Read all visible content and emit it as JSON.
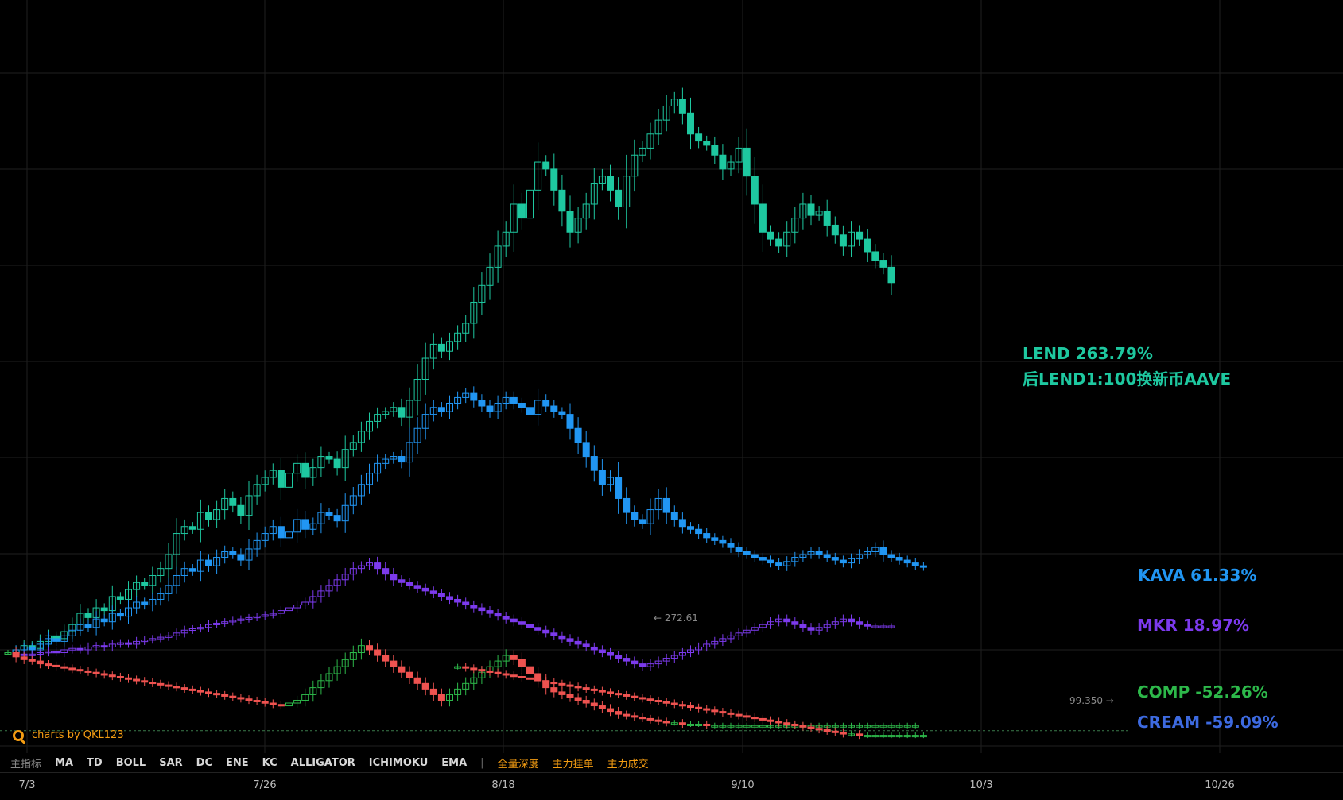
{
  "chart_data": {
    "type": "candlestick",
    "x_ticks": [
      "7/3",
      "7/26",
      "8/18",
      "9/10",
      "10/3",
      "10/26"
    ],
    "series": [
      {
        "name": "LEND",
        "label": "LEND  263.79%",
        "note": "后LEND1:100换新币AAVE",
        "color": "#1ec8a0",
        "change_pct": 263.79,
        "values": [
          0,
          2,
          5,
          3,
          8,
          12,
          10,
          15,
          20,
          28,
          25,
          32,
          30,
          40,
          38,
          45,
          50,
          48,
          55,
          60,
          70,
          85,
          90,
          88,
          100,
          95,
          102,
          110,
          105,
          98,
          112,
          120,
          125,
          130,
          118,
          128,
          135,
          125,
          132,
          140,
          138,
          132,
          145,
          150,
          158,
          165,
          170,
          172,
          175,
          168,
          180,
          195,
          210,
          220,
          215,
          222,
          228,
          235,
          250,
          262,
          275,
          290,
          300,
          320,
          310,
          330,
          350,
          345,
          330,
          315,
          300,
          310,
          320,
          335,
          340,
          330,
          318,
          340,
          355,
          360,
          370,
          380,
          390,
          395,
          385,
          370,
          365,
          362,
          355,
          345,
          350,
          360,
          340,
          320,
          300,
          295,
          290,
          300,
          310,
          320,
          312,
          315,
          305,
          298,
          290,
          300,
          295,
          286,
          280,
          275,
          264
        ]
      },
      {
        "name": "KAVA",
        "label": "KAVA  61.33%",
        "color": "#2196f3",
        "change_pct": 61.33,
        "values": [
          0,
          2,
          4,
          2,
          6,
          10,
          8,
          12,
          16,
          20,
          18,
          24,
          22,
          28,
          26,
          32,
          36,
          34,
          38,
          42,
          48,
          55,
          60,
          58,
          66,
          62,
          68,
          72,
          70,
          66,
          74,
          80,
          85,
          90,
          82,
          86,
          95,
          88,
          92,
          100,
          98,
          94,
          105,
          112,
          120,
          128,
          135,
          138,
          140,
          136,
          150,
          160,
          170,
          175,
          172,
          178,
          182,
          185,
          180,
          176,
          172,
          178,
          182,
          178,
          175,
          170,
          180,
          176,
          172,
          170,
          160,
          150,
          140,
          130,
          120,
          125,
          110,
          100,
          95,
          92,
          102,
          110,
          100,
          95,
          90,
          88,
          85,
          82,
          80,
          78,
          75,
          72,
          70,
          68,
          66,
          64,
          62,
          65,
          68,
          70,
          72,
          70,
          68,
          66,
          64,
          67,
          70,
          72,
          75,
          70,
          68,
          66,
          64,
          62,
          61
        ]
      },
      {
        "name": "MKR",
        "label": "MKR  18.97%",
        "color": "#7c3aed",
        "change_pct": 18.97,
        "values": [
          0,
          -1,
          -2,
          -1,
          0,
          1,
          0,
          2,
          3,
          2,
          4,
          5,
          4,
          6,
          7,
          6,
          8,
          9,
          10,
          11,
          12,
          14,
          16,
          17,
          18,
          20,
          21,
          22,
          23,
          24,
          25,
          26,
          27,
          28,
          30,
          32,
          34,
          36,
          40,
          44,
          48,
          52,
          56,
          60,
          62,
          64,
          60,
          56,
          52,
          50,
          48,
          46,
          44,
          42,
          40,
          38,
          36,
          34,
          32,
          30,
          28,
          26,
          24,
          22,
          20,
          18,
          16,
          14,
          12,
          10,
          8,
          6,
          4,
          2,
          0,
          -2,
          -4,
          -6,
          -8,
          -10,
          -8,
          -6,
          -4,
          -2,
          0,
          2,
          4,
          6,
          8,
          10,
          12,
          14,
          16,
          18,
          20,
          22,
          24,
          22,
          20,
          18,
          16,
          18,
          20,
          22,
          24,
          22,
          20,
          19,
          19,
          19,
          19
        ]
      },
      {
        "name": "COMP",
        "label": "COMP -52.26%",
        "color": "#2db84a",
        "change_pct": -52.26,
        "values": [
          0,
          -3,
          -5,
          -6,
          -8,
          -9,
          -10,
          -11,
          -12,
          -13,
          -14,
          -15,
          -16,
          -17,
          -18,
          -19,
          -20,
          -21,
          -22,
          -23,
          -24,
          -25,
          -26,
          -27,
          -28,
          -29,
          -30,
          -31,
          -32,
          -33,
          -34,
          -35,
          -36,
          -37,
          -38,
          -36,
          -34,
          -30,
          -25,
          -20,
          -15,
          -10,
          -5,
          0,
          5,
          2,
          -2,
          -6,
          -10,
          -14,
          -18,
          -22,
          -26,
          -30,
          -34,
          -30,
          -26,
          -22,
          -18,
          -14,
          -10,
          -6,
          -2,
          -5,
          -10,
          -15,
          -20,
          -25,
          -28,
          -30,
          -32,
          -34,
          -36,
          -38,
          -40,
          -42,
          -44,
          -45,
          -46,
          -47,
          -48,
          -49,
          -50,
          -50,
          -51,
          -51,
          -51,
          -52,
          -52,
          -52,
          -52,
          -52,
          -52,
          -52,
          -52,
          -52,
          -52,
          -52,
          -52,
          -52,
          -52,
          -52,
          -52,
          -52,
          -52,
          -52,
          -52,
          -52,
          -52,
          -52,
          -52,
          -52,
          -52,
          -52
        ]
      },
      {
        "name": "CREAM",
        "label": "CREAM -59.09%",
        "color": "#3d6ae0",
        "change_pct": -59.09,
        "values": [
          -10,
          -11,
          -12,
          -13,
          -14,
          -15,
          -16,
          -17,
          -18,
          -19,
          -20,
          -21,
          -22,
          -23,
          -24,
          -25,
          -26,
          -27,
          -28,
          -29,
          -30,
          -31,
          -32,
          -33,
          -34,
          -35,
          -36,
          -37,
          -38,
          -39,
          -40,
          -41,
          -42,
          -43,
          -44,
          -45,
          -46,
          -47,
          -48,
          -49,
          -50,
          -51,
          -52,
          -53,
          -54,
          -55,
          -56,
          -57,
          -58,
          -58,
          -59,
          -59,
          -59,
          -59,
          -59,
          -59,
          -59,
          -59,
          -59
        ]
      }
    ],
    "annotations": [
      {
        "text": "← 272.61",
        "color": "#888"
      },
      {
        "text": "99.350 →",
        "color": "#888"
      }
    ],
    "ylim": [
      -70,
      460
    ],
    "grid": true,
    "watermark": "charts by QKL123"
  },
  "toolbar": {
    "main_indicator": "主指标",
    "indicators": [
      "MA",
      "TD",
      "BOLL",
      "SAR",
      "DC",
      "ENE",
      "KC",
      "ALLIGATOR",
      "ICHIMOKU",
      "EMA"
    ],
    "separator": "|",
    "depth_items": [
      "全量深度",
      "主力挂单",
      "主力成交"
    ]
  },
  "colors": {
    "up": "#1ec8a0",
    "down": "#ef5350",
    "grid": "#1f1f1f",
    "background": "#000000",
    "orange": "#f39c12"
  }
}
